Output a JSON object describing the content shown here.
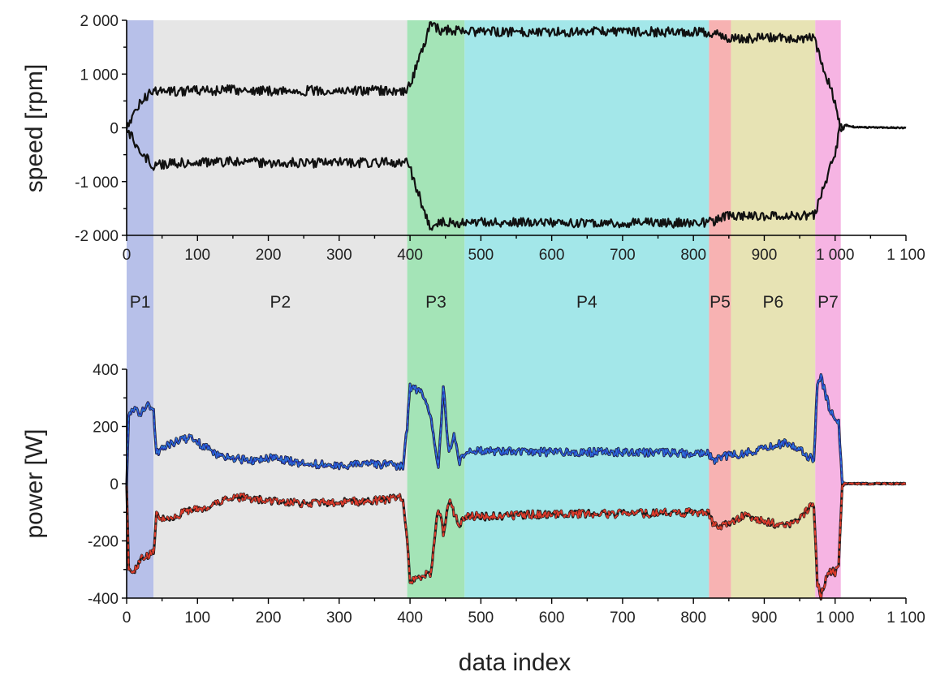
{
  "chart_data": [
    {
      "type": "line",
      "ylabel": "speed [rpm]",
      "ylim": [
        -2000,
        2000
      ],
      "xlim": [
        0,
        1100
      ],
      "yticks": [
        -2000,
        -1000,
        0,
        1000,
        2000
      ],
      "ytick_labels": [
        "-2 000",
        "-1 000",
        "0",
        "1 000",
        "2 000"
      ],
      "xticks": [
        0,
        100,
        200,
        300,
        400,
        500,
        600,
        700,
        800,
        900,
        1000,
        1100
      ],
      "xtick_labels": [
        "0",
        "100",
        "200",
        "300",
        "400",
        "500",
        "600",
        "700",
        "800",
        "900",
        "1 000",
        "1 100"
      ],
      "grid": false,
      "series": [
        {
          "color": "#111111",
          "x": [
            0,
            20,
            38,
            45,
            100,
            150,
            200,
            300,
            350,
            395,
            400,
            428,
            445,
            455,
            480,
            600,
            700,
            820,
            835,
            850,
            900,
            970,
            1000,
            1007,
            1012,
            1030,
            1100
          ],
          "values": [
            0,
            480,
            710,
            680,
            690,
            705,
            690,
            690,
            690,
            690,
            790,
            1890,
            1810,
            1830,
            1780,
            1790,
            1790,
            1780,
            1720,
            1660,
            1670,
            1660,
            500,
            0,
            60,
            10,
            0
          ]
        },
        {
          "color": "#111111",
          "x": [
            0,
            20,
            38,
            45,
            100,
            150,
            200,
            300,
            350,
            395,
            400,
            428,
            445,
            455,
            480,
            600,
            700,
            820,
            835,
            850,
            900,
            970,
            1000,
            1007,
            1012,
            1030,
            1100
          ],
          "values": [
            0,
            -470,
            -700,
            -680,
            -640,
            -630,
            -650,
            -650,
            -650,
            -650,
            -760,
            -1860,
            -1760,
            -1770,
            -1760,
            -1770,
            -1770,
            -1770,
            -1700,
            -1640,
            -1650,
            -1640,
            -480,
            0,
            40,
            10,
            0
          ]
        }
      ]
    },
    {
      "type": "line",
      "xlabel": "data index",
      "ylabel": "power [W]",
      "ylim": [
        -400,
        400
      ],
      "xlim": [
        0,
        1100
      ],
      "yticks": [
        -400,
        -200,
        0,
        200,
        400
      ],
      "ytick_labels": [
        "-400",
        "-200",
        "0",
        "200",
        "400"
      ],
      "xticks": [
        0,
        100,
        200,
        300,
        400,
        500,
        600,
        700,
        800,
        900,
        1000,
        1100
      ],
      "xtick_labels": [
        "0",
        "100",
        "200",
        "300",
        "400",
        "500",
        "600",
        "700",
        "800",
        "900",
        "1 000",
        "1 100"
      ],
      "grid": false,
      "series": [
        {
          "color": "#2a45c8",
          "x": [
            0,
            3,
            10,
            20,
            30,
            38,
            42,
            50,
            70,
            90,
            110,
            130,
            150,
            170,
            200,
            250,
            300,
            350,
            390,
            396,
            400,
            420,
            430,
            440,
            447,
            455,
            462,
            470,
            480,
            500,
            600,
            700,
            820,
            830,
            850,
            870,
            900,
            930,
            950,
            970,
            975,
            980,
            990,
            1000,
            1005,
            1010,
            1030,
            1100
          ],
          "values": [
            0,
            230,
            260,
            240,
            280,
            260,
            110,
            120,
            150,
            160,
            130,
            100,
            90,
            80,
            90,
            70,
            65,
            70,
            60,
            200,
            340,
            310,
            230,
            50,
            340,
            100,
            170,
            80,
            110,
            115,
            110,
            110,
            105,
            80,
            100,
            105,
            120,
            145,
            120,
            80,
            350,
            370,
            280,
            220,
            220,
            0,
            0,
            0
          ]
        },
        {
          "color": "#e03c2c",
          "x": [
            0,
            3,
            10,
            20,
            30,
            38,
            42,
            50,
            70,
            90,
            110,
            130,
            150,
            170,
            200,
            250,
            300,
            350,
            390,
            396,
            400,
            420,
            430,
            440,
            447,
            455,
            462,
            470,
            480,
            500,
            600,
            700,
            820,
            830,
            850,
            870,
            900,
            930,
            950,
            970,
            975,
            980,
            990,
            1000,
            1005,
            1010,
            1030,
            1100
          ],
          "values": [
            0,
            -290,
            -310,
            -260,
            -250,
            -240,
            -110,
            -120,
            -110,
            -95,
            -90,
            -65,
            -45,
            -50,
            -60,
            -70,
            -65,
            -60,
            -50,
            -200,
            -340,
            -320,
            -310,
            -80,
            -170,
            -60,
            -100,
            -140,
            -110,
            -115,
            -105,
            -105,
            -100,
            -150,
            -140,
            -110,
            -130,
            -150,
            -120,
            -70,
            -350,
            -390,
            -300,
            -310,
            -300,
            0,
            0,
            0
          ]
        }
      ]
    }
  ],
  "phases": [
    {
      "label": "P1",
      "x0": 0,
      "x1": 38,
      "color": "#b3bde8"
    },
    {
      "label": "P2",
      "x0": 38,
      "x1": 396,
      "color": "#e5e5e5"
    },
    {
      "label": "P3",
      "x0": 396,
      "x1": 477,
      "color": "#9fe3b3"
    },
    {
      "label": "P4",
      "x0": 477,
      "x1": 822,
      "color": "#9ee6e8"
    },
    {
      "label": "P5",
      "x0": 822,
      "x1": 853,
      "color": "#f7aeae"
    },
    {
      "label": "P6",
      "x0": 853,
      "x1": 972,
      "color": "#e6e2b0"
    },
    {
      "label": "P7",
      "x0": 972,
      "x1": 1008,
      "color": "#f6b0e2"
    }
  ]
}
